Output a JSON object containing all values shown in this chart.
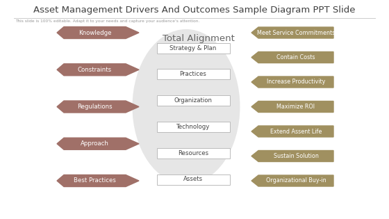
{
  "title": "Asset Management Drivers And Outcomes Sample Diagram PPT Slide",
  "subtitle": "This slide is 100% editable. Adapt it to your needs and capture your audience's attention.",
  "bg_color": "#ffffff",
  "title_color": "#404040",
  "subtitle_color": "#999999",
  "left_labels": [
    "Knowledge",
    "Constraints",
    "Regulations",
    "Approach",
    "Best Practices"
  ],
  "left_arrow_color": "#a07068",
  "center_title": "Total Alignment",
  "center_title_color": "#666666",
  "center_items": [
    "Strategy & Plan",
    "Practices",
    "Organization",
    "Technology",
    "Resources",
    "Assets"
  ],
  "center_box_facecolor": "#ffffff",
  "center_box_edgecolor": "#bbbbbb",
  "ellipse_color": "#e6e6e6",
  "right_labels": [
    "Meet Service Commitments",
    "Contain Costs",
    "Increase Productivity",
    "Maximize ROI",
    "Extend Assent Life",
    "Sustain Solution",
    "Organizational Buy-in"
  ],
  "right_arrow_color": "#a09060",
  "fig_w": 5.6,
  "fig_h": 3.15,
  "dpi": 100
}
